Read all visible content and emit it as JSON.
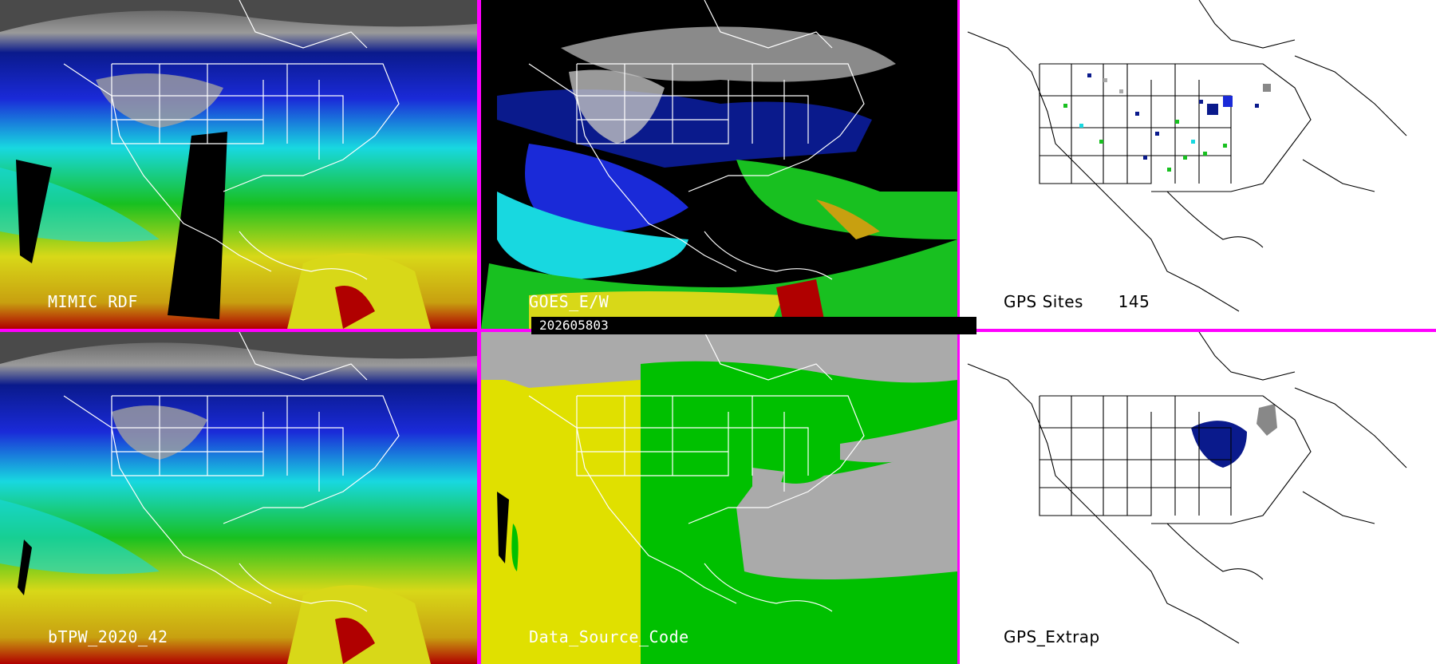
{
  "panels": [
    {
      "id": "mimic",
      "label": "MIMIC RDF"
    },
    {
      "id": "goes",
      "label": "GOES_E/W"
    },
    {
      "id": "gps_sites",
      "label": "GPS Sites",
      "count": "145"
    },
    {
      "id": "btpw",
      "label": "bTPW_2020_42"
    },
    {
      "id": "source",
      "label": "Data_Source_Code"
    },
    {
      "id": "gps_extrap",
      "label": "GPS_Extrap"
    }
  ],
  "timestamp": "202605803",
  "colors": {
    "divider": "#ff00ff",
    "dry_gray": "#9a9a9a",
    "dark_blue": "#0a1a8c",
    "blue": "#1a2ad8",
    "cyan": "#18d8e0",
    "green": "#18c020",
    "yellow": "#d8d818",
    "red": "#b00000",
    "source_gray": "#aaaaaa",
    "source_yellow": "#e0e000",
    "source_green": "#00c000"
  }
}
